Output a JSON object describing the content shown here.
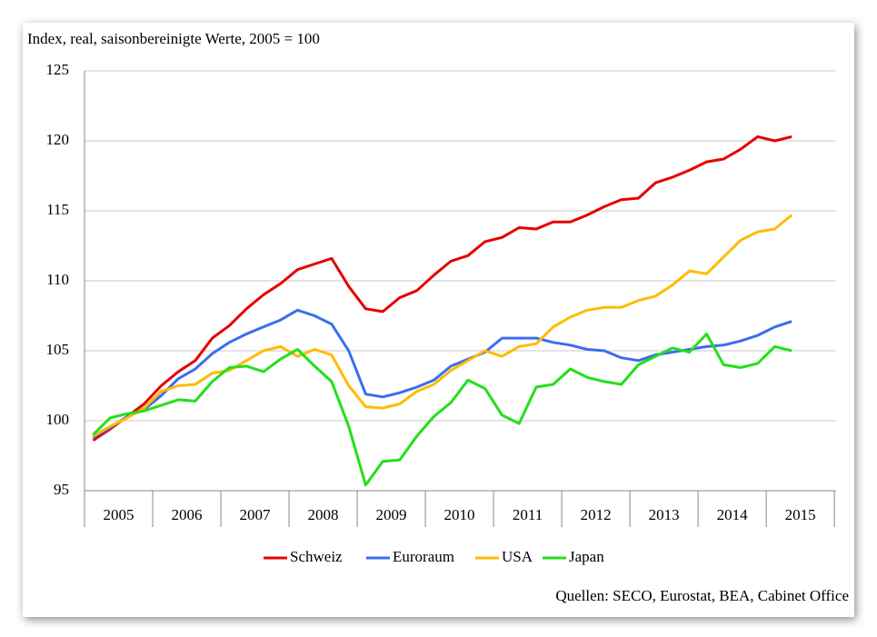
{
  "chart_data": {
    "type": "line",
    "title": "Index, real, saisonbereinigte Werte, 2005 = 100",
    "source": "Quellen: SECO, Eurostat, BEA, Cabinet Office",
    "x": [
      2005,
      2005.25,
      2005.5,
      2005.75,
      2006,
      2006.25,
      2006.5,
      2006.75,
      2007,
      2007.25,
      2007.5,
      2007.75,
      2008,
      2008.25,
      2008.5,
      2008.75,
      2009,
      2009.25,
      2009.5,
      2009.75,
      2010,
      2010.25,
      2010.5,
      2010.75,
      2011,
      2011.25,
      2011.5,
      2011.75,
      2012,
      2012.25,
      2012.5,
      2012.75,
      2013,
      2013.25,
      2013.5,
      2013.75,
      2014,
      2014.25,
      2014.5,
      2014.75,
      2015,
      2015.25
    ],
    "xlim": [
      2004.875,
      2015.9
    ],
    "xticks": [
      {
        "value": 2005.375,
        "label": "2005"
      },
      {
        "value": 2006.375,
        "label": "2006"
      },
      {
        "value": 2007.375,
        "label": "2007"
      },
      {
        "value": 2008.375,
        "label": "2008"
      },
      {
        "value": 2009.375,
        "label": "2009"
      },
      {
        "value": 2010.375,
        "label": "2010"
      },
      {
        "value": 2011.375,
        "label": "2011"
      },
      {
        "value": 2012.375,
        "label": "2012"
      },
      {
        "value": 2013.375,
        "label": "2013"
      },
      {
        "value": 2014.375,
        "label": "2014"
      },
      {
        "value": 2015.375,
        "label": "2015"
      }
    ],
    "ylim": [
      95,
      125
    ],
    "yticks": [
      95,
      100,
      105,
      110,
      115,
      120,
      125
    ],
    "grid": true,
    "legend": "bottom",
    "series": [
      {
        "name": "Schweiz",
        "color": "#e60000",
        "values": [
          98.6,
          99.4,
          100.3,
          101.2,
          102.5,
          103.5,
          104.3,
          105.9,
          106.8,
          108.0,
          109.0,
          109.8,
          110.8,
          111.2,
          111.6,
          109.6,
          108.0,
          107.8,
          108.8,
          109.3,
          110.4,
          111.4,
          111.8,
          112.8,
          113.1,
          113.8,
          113.7,
          114.2,
          114.2,
          114.7,
          115.3,
          115.8,
          115.9,
          117.0,
          117.4,
          117.9,
          118.5,
          118.7,
          119.4,
          120.3,
          120.0,
          120.3
        ]
      },
      {
        "name": "Euroraum",
        "color": "#3a6df0",
        "values": [
          98.8,
          99.5,
          100.3,
          100.8,
          101.8,
          103.0,
          103.7,
          104.8,
          105.6,
          106.2,
          106.7,
          107.2,
          107.9,
          107.5,
          106.9,
          105.0,
          101.9,
          101.7,
          102.0,
          102.4,
          102.9,
          103.9,
          104.4,
          104.9,
          105.9,
          105.9,
          105.9,
          105.6,
          105.4,
          105.1,
          105.0,
          104.5,
          104.3,
          104.7,
          104.9,
          105.1,
          105.3,
          105.4,
          105.7,
          106.1,
          106.7,
          107.1
        ]
      },
      {
        "name": "USA",
        "color": "#ffbb00",
        "values": [
          98.9,
          99.6,
          100.2,
          100.9,
          102.1,
          102.5,
          102.6,
          103.4,
          103.6,
          104.3,
          105.0,
          105.3,
          104.6,
          105.1,
          104.7,
          102.5,
          101.0,
          100.9,
          101.2,
          102.1,
          102.6,
          103.6,
          104.3,
          105.0,
          104.6,
          105.3,
          105.5,
          106.7,
          107.4,
          107.9,
          108.1,
          108.1,
          108.6,
          108.9,
          109.7,
          110.7,
          110.5,
          111.7,
          112.9,
          113.5,
          113.7,
          114.7
        ]
      },
      {
        "name": "Japan",
        "color": "#22e01a",
        "values": [
          99.0,
          100.2,
          100.5,
          100.7,
          101.1,
          101.5,
          101.4,
          102.8,
          103.8,
          103.9,
          103.5,
          104.4,
          105.1,
          103.9,
          102.8,
          99.6,
          95.4,
          97.1,
          97.2,
          98.9,
          100.3,
          101.3,
          102.9,
          102.3,
          100.4,
          99.8,
          102.4,
          102.6,
          103.7,
          103.1,
          102.8,
          102.6,
          104.0,
          104.6,
          105.2,
          104.9,
          106.2,
          104.0,
          103.8,
          104.1,
          105.3,
          105.0
        ]
      }
    ]
  }
}
